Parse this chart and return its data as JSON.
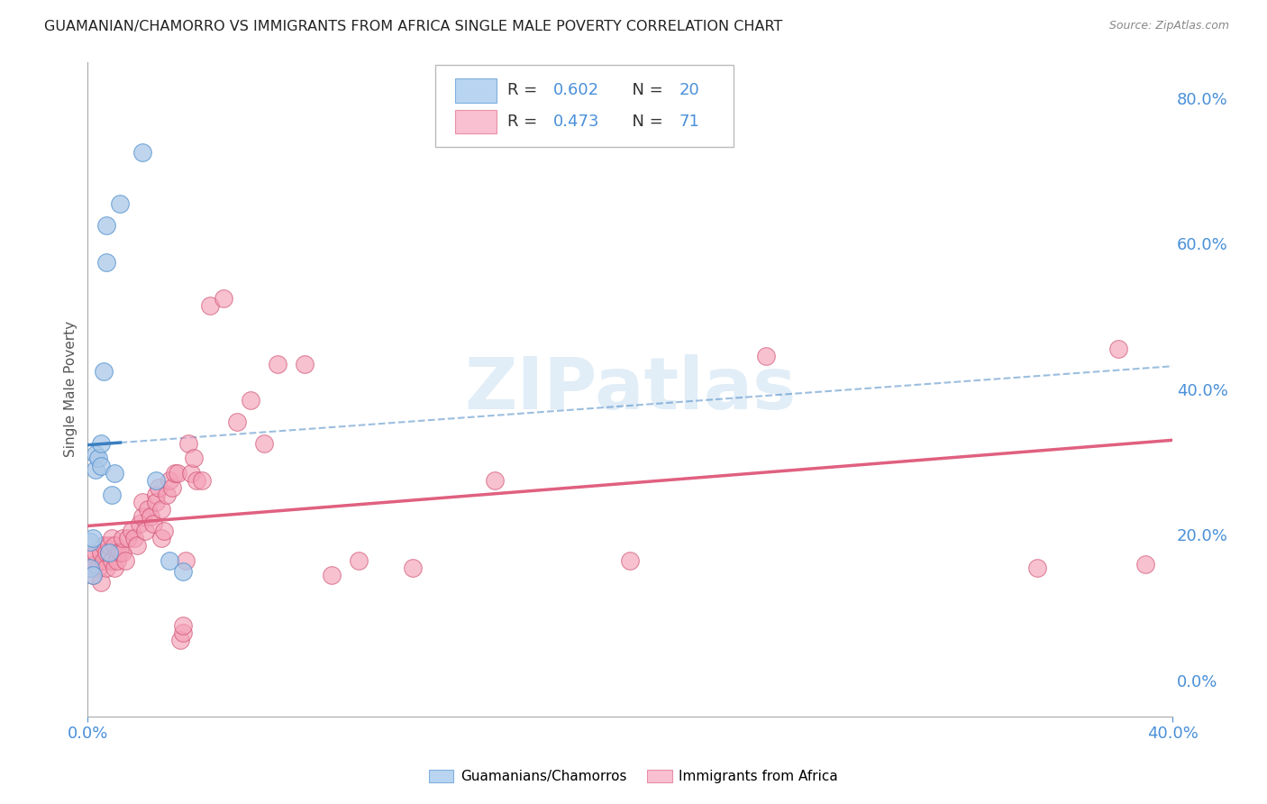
{
  "title": "GUAMANIAN/CHAMORRO VS IMMIGRANTS FROM AFRICA SINGLE MALE POVERTY CORRELATION CHART",
  "source": "Source: ZipAtlas.com",
  "ylabel": "Single Male Poverty",
  "right_yticks": [
    "0.0%",
    "20.0%",
    "40.0%",
    "60.0%",
    "80.0%"
  ],
  "right_ytick_vals": [
    0.0,
    0.2,
    0.4,
    0.6,
    0.8
  ],
  "legend_label_blue": "Guamanians/Chamorros",
  "legend_label_pink": "Immigrants from Africa",
  "blue_scatter_color": "#aac8e8",
  "pink_scatter_color": "#f4a0b8",
  "blue_line_color": "#3a7fc1",
  "pink_line_color": "#e06080",
  "blue_edge_color": "#5090d0",
  "pink_edge_color": "#d05070",
  "background_color": "#ffffff",
  "grid_color": "#d0d0d0",
  "title_color": "#222222",
  "right_axis_color": "#4a90d9",
  "watermark": "ZIPatlas",
  "blue_x": [
    0.001,
    0.001,
    0.002,
    0.002,
    0.003,
    0.003,
    0.004,
    0.005,
    0.005,
    0.006,
    0.007,
    0.007,
    0.008,
    0.009,
    0.01,
    0.012,
    0.02,
    0.025,
    0.03,
    0.035
  ],
  "blue_y": [
    0.155,
    0.19,
    0.145,
    0.195,
    0.29,
    0.31,
    0.305,
    0.295,
    0.325,
    0.425,
    0.575,
    0.625,
    0.175,
    0.255,
    0.285,
    0.655,
    0.725,
    0.275,
    0.165,
    0.15
  ],
  "pink_x": [
    0.001,
    0.001,
    0.002,
    0.003,
    0.003,
    0.004,
    0.005,
    0.005,
    0.006,
    0.006,
    0.007,
    0.007,
    0.008,
    0.008,
    0.009,
    0.009,
    0.01,
    0.01,
    0.011,
    0.011,
    0.012,
    0.013,
    0.013,
    0.014,
    0.015,
    0.016,
    0.017,
    0.018,
    0.019,
    0.02,
    0.02,
    0.021,
    0.022,
    0.023,
    0.024,
    0.025,
    0.025,
    0.026,
    0.027,
    0.027,
    0.028,
    0.029,
    0.03,
    0.031,
    0.032,
    0.033,
    0.034,
    0.035,
    0.035,
    0.036,
    0.037,
    0.038,
    0.039,
    0.04,
    0.042,
    0.045,
    0.05,
    0.055,
    0.06,
    0.065,
    0.07,
    0.08,
    0.09,
    0.1,
    0.12,
    0.15,
    0.2,
    0.25,
    0.35,
    0.38,
    0.39
  ],
  "pink_y": [
    0.155,
    0.17,
    0.145,
    0.16,
    0.175,
    0.155,
    0.135,
    0.175,
    0.185,
    0.165,
    0.155,
    0.175,
    0.175,
    0.185,
    0.165,
    0.195,
    0.155,
    0.185,
    0.175,
    0.165,
    0.175,
    0.175,
    0.195,
    0.165,
    0.195,
    0.205,
    0.195,
    0.185,
    0.215,
    0.225,
    0.245,
    0.205,
    0.235,
    0.225,
    0.215,
    0.255,
    0.245,
    0.265,
    0.235,
    0.195,
    0.205,
    0.255,
    0.275,
    0.265,
    0.285,
    0.285,
    0.055,
    0.065,
    0.075,
    0.165,
    0.325,
    0.285,
    0.305,
    0.275,
    0.275,
    0.515,
    0.525,
    0.355,
    0.385,
    0.325,
    0.435,
    0.435,
    0.145,
    0.165,
    0.155,
    0.275,
    0.165,
    0.445,
    0.155,
    0.455,
    0.16
  ],
  "xlim": [
    0.0,
    0.4
  ],
  "ylim": [
    -0.05,
    0.85
  ],
  "ytick_vals": [
    0.0,
    0.2,
    0.4,
    0.6,
    0.8
  ]
}
